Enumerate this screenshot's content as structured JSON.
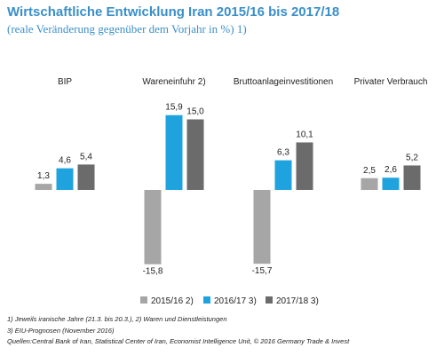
{
  "chart_data": {
    "type": "bar",
    "title": "Wirtschaftliche Entwicklung Iran 2015/16 bis 2017/18",
    "subtitle": "(reale Veränderung gegenüber dem Vorjahr in %) 1)",
    "categories": [
      "BIP",
      "Wareneinfuhr 2)",
      "Bruttoanlageinvestitionen",
      "Privater Verbrauch"
    ],
    "series": [
      {
        "name": "2015/16 2)",
        "values": [
          1.3,
          -15.8,
          -15.7,
          2.5
        ],
        "labels": [
          "1,3",
          "-15,8",
          "-15,7",
          "2,5"
        ],
        "color": "#a6a6a6"
      },
      {
        "name": "2016/17 3)",
        "values": [
          4.6,
          15.9,
          6.3,
          2.6
        ],
        "labels": [
          "4,6",
          "15,9",
          "6,3",
          "2,6"
        ],
        "color": "#1fa3df"
      },
      {
        "name": "2017/18 3)",
        "values": [
          5.4,
          15.0,
          10.1,
          5.2
        ],
        "labels": [
          "5,4",
          "15,0",
          "10,1",
          "5,2"
        ],
        "color": "#6b6b6b"
      }
    ],
    "ylim": [
      -16,
      16
    ],
    "grid": false,
    "legend_position": "bottom"
  },
  "footnotes": [
    "1) Jeweils iranische Jahre (21.3. bis 20.3.), 2) Waren und Dienstleistungen",
    "3) EIU-Prognosen (November 2016)",
    "Quellen:Central Bank of Iran, Statistical Center of Iran, Economist Intelligence Unit, © 2016  Germany Trade & Invest"
  ]
}
